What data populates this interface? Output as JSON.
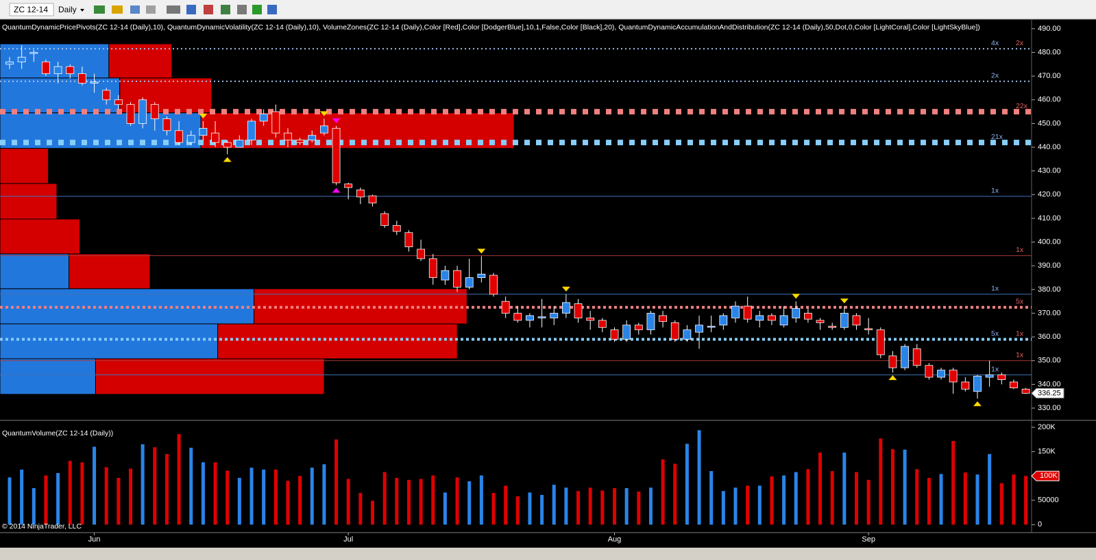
{
  "toolbar": {
    "instrument": "ZC 12-14",
    "period": "Daily"
  },
  "chart_data": [
    {
      "type": "candlestick",
      "indicator_label": "QuantumDynamicPricePivots(ZC 12-14 (Daily),10), QuantumDynamicVolatility(ZC 12-14 (Daily),10), VolumeZones(ZC 12-14 (Daily),Color [Red],Color [DodgerBlue],10,1,False,Color [Black],20), QuantumDynamicAccumulationAndDistribution(ZC 12-14 (Daily),50,Dot,0,Color [LightCoral],Color [LightSkyBlue])",
      "up_color": "#2a84e8",
      "down_color": "#e00000",
      "open": [
        475,
        476,
        479.5,
        476,
        471,
        474,
        471,
        467,
        464,
        460,
        458,
        450,
        458,
        452,
        447,
        442,
        445,
        446,
        442,
        440,
        443,
        451,
        455,
        446,
        443,
        443,
        446,
        448,
        424.5,
        422,
        419.5,
        412,
        407,
        404,
        397,
        393,
        384,
        388,
        381,
        385,
        386,
        375,
        370,
        367,
        368,
        368,
        370,
        374,
        368,
        367,
        363,
        359,
        365,
        363,
        369,
        366,
        359,
        362,
        364.5,
        365,
        368,
        373,
        367,
        369,
        365,
        368,
        370,
        367,
        364.5,
        364,
        369,
        363.5,
        363,
        352,
        347,
        355,
        348,
        343,
        346,
        341,
        337,
        343,
        344,
        341,
        338
      ],
      "high": [
        478,
        483,
        481,
        477,
        476,
        475,
        474,
        471,
        465,
        462,
        459,
        461,
        459,
        453,
        451,
        447,
        451,
        451,
        443,
        445,
        452,
        456,
        458,
        448,
        444,
        447,
        452,
        449,
        425,
        423,
        420,
        413,
        409,
        405,
        401,
        395,
        390,
        390,
        393,
        394,
        387,
        377,
        373,
        370,
        376,
        373,
        378,
        376,
        371,
        368,
        364,
        367,
        366,
        371,
        371,
        367,
        365,
        369,
        369,
        370,
        375,
        377,
        371,
        370,
        373,
        375,
        372,
        368,
        366,
        373,
        370,
        368,
        364,
        354,
        357,
        357,
        349,
        347,
        347,
        343,
        344,
        350,
        345,
        342,
        338.5
      ],
      "low": [
        473,
        473,
        476,
        470,
        467,
        469,
        466,
        463,
        458,
        456,
        449,
        448,
        447,
        445,
        441,
        441,
        443,
        440,
        437,
        440,
        441,
        449,
        444,
        440,
        441,
        442,
        445,
        424,
        418,
        416,
        415,
        406,
        403,
        396,
        392,
        382,
        382,
        379,
        380,
        383,
        377,
        368,
        366,
        364,
        364,
        365,
        368,
        366,
        363,
        362,
        358,
        358,
        361,
        361,
        364,
        358,
        358,
        355,
        362,
        363,
        366,
        366,
        364,
        365,
        364,
        366,
        366,
        363,
        363,
        363,
        363,
        361,
        351,
        345,
        346,
        347,
        342,
        342,
        336,
        337,
        334,
        339,
        340,
        338,
        336
      ],
      "close": [
        476,
        478,
        480,
        471,
        474,
        471,
        467,
        467.5,
        460,
        458,
        450,
        460,
        452,
        447,
        442,
        445,
        448,
        442,
        440,
        443,
        451,
        454,
        446,
        443,
        442,
        445,
        449,
        425,
        423,
        419,
        416.5,
        407,
        404.5,
        398,
        393,
        385,
        388,
        381,
        385,
        386.5,
        378,
        370,
        367,
        369,
        368.5,
        370,
        374.5,
        368,
        367,
        364,
        359,
        365,
        363,
        370,
        366.5,
        359,
        363,
        365,
        364.5,
        369,
        373,
        367.5,
        369,
        367,
        369,
        372,
        367.5,
        366,
        364,
        370,
        365,
        363,
        352.5,
        347,
        356,
        348,
        343,
        346,
        341,
        338,
        343.5,
        344,
        342,
        338.5,
        336.25
      ],
      "ylim": [
        325.4,
        494
      ],
      "yticks": [
        {
          "value": 490,
          "label": "490.00"
        },
        {
          "value": 480,
          "label": "480.00"
        },
        {
          "value": 470,
          "label": "470.00"
        },
        {
          "value": 460,
          "label": "460.00"
        },
        {
          "value": 450,
          "label": "450.00"
        },
        {
          "value": 440,
          "label": "440.00"
        },
        {
          "value": 430,
          "label": "430.00"
        },
        {
          "value": 420,
          "label": "420.00"
        },
        {
          "value": 410,
          "label": "410.00"
        },
        {
          "value": 400,
          "label": "400.00"
        },
        {
          "value": 390,
          "label": "390.00"
        },
        {
          "value": 380,
          "label": "380.00"
        },
        {
          "value": 370,
          "label": "370.00"
        },
        {
          "value": 360,
          "label": "360.00"
        },
        {
          "value": 350,
          "label": "350.00"
        },
        {
          "value": 340,
          "label": "340.00"
        },
        {
          "value": 330,
          "label": "330.00"
        }
      ],
      "last_price": 336.25,
      "volume_zones": [
        {
          "low": 469.2,
          "high": 483.6,
          "up": 9.0,
          "down": 5.2,
          "up_color": "#2277dd",
          "down_color": "#d40000"
        },
        {
          "low": 454.5,
          "high": 469.2,
          "up": 9.9,
          "down": 7.6,
          "up_color": "#2277dd",
          "down_color": "#d40000"
        },
        {
          "low": 439.5,
          "high": 454.5,
          "up": 16.6,
          "down": 25.9,
          "up_color": "#2277dd",
          "down_color": "#d40000"
        },
        {
          "low": 424.7,
          "high": 439.5,
          "up": 0,
          "down": 4.0,
          "up_color": "#2277dd",
          "down_color": "#d40000"
        },
        {
          "low": 409.7,
          "high": 424.7,
          "up": 0,
          "down": 4.7,
          "up_color": "#2277dd",
          "down_color": "#d40000"
        },
        {
          "low": 395,
          "high": 409.7,
          "up": 0,
          "down": 6.6,
          "up_color": "#2277dd",
          "down_color": "#d40000"
        },
        {
          "low": 380.3,
          "high": 395,
          "up": 5.7,
          "down": 6.7,
          "up_color": "#2277dd",
          "down_color": "#d40000"
        },
        {
          "low": 365.5,
          "high": 380.3,
          "up": 21.0,
          "down": 17.6,
          "up_color": "#2277dd",
          "down_color": "#d40000"
        },
        {
          "low": 350.8,
          "high": 365.5,
          "up": 18.0,
          "down": 19.8,
          "up_color": "#2277dd",
          "down_color": "#d40000"
        },
        {
          "low": 335.8,
          "high": 350.8,
          "up": 7.9,
          "down": 18.9,
          "up_color": "#2277dd",
          "down_color": "#d40000"
        }
      ],
      "levels": [
        {
          "value": 481.5,
          "color": "#a8c4ec",
          "style": "dots",
          "blue_tag": "4x",
          "red_tag": "2x"
        },
        {
          "value": 467.8,
          "color": "#a8c4ec",
          "style": "dots",
          "blue_tag": "2x"
        },
        {
          "value": 455,
          "color": "#f08080",
          "style": "blocks",
          "red_tag": "22x"
        },
        {
          "value": 442,
          "color": "#87cefa",
          "style": "blocks",
          "blue_tag": "21x"
        },
        {
          "value": 419.3,
          "color": "#3f74b8",
          "style": "solid",
          "blue_tag": "1x"
        },
        {
          "value": 394.3,
          "color": "#a83838",
          "style": "solid",
          "red_tag": "1x"
        },
        {
          "value": 378,
          "color": "#3f74b8",
          "style": "solid",
          "blue_tag": "1x"
        },
        {
          "value": 372.5,
          "color": "#f08080",
          "style": "dashes",
          "red_tag": "5x"
        },
        {
          "value": 359,
          "color": "#87cefa",
          "style": "dashes",
          "blue_tag": "5x",
          "red_tag": "1x"
        },
        {
          "value": 350,
          "color": "#a83838",
          "style": "solid",
          "red_tag": "1x"
        },
        {
          "value": 344,
          "color": "#3f74b8",
          "style": "solid",
          "blue_tag": "1x"
        }
      ],
      "signals": [
        {
          "index": 16,
          "dir": "down",
          "color": "#ffd700"
        },
        {
          "index": 18,
          "dir": "up",
          "color": "#ffd700"
        },
        {
          "index": 26,
          "dir": "down",
          "color": "#ffd700"
        },
        {
          "index": 27,
          "dir": "down",
          "color": "#ff00ff"
        },
        {
          "index": 27,
          "dir": "up",
          "color": "#ff00ff"
        },
        {
          "index": 39,
          "dir": "down",
          "color": "#ffd700"
        },
        {
          "index": 46,
          "dir": "down",
          "color": "#ffd700"
        },
        {
          "index": 65,
          "dir": "down",
          "color": "#ffd700"
        },
        {
          "index": 69,
          "dir": "down",
          "color": "#ffd700"
        },
        {
          "index": 73,
          "dir": "up",
          "color": "#ffd700"
        },
        {
          "index": 80,
          "dir": "up",
          "color": "#ffd700"
        }
      ]
    },
    {
      "type": "bar",
      "title": "QuantumVolume(ZC 12-14 (Daily))",
      "categories": [
        null,
        null,
        null,
        null,
        null,
        null,
        null,
        "Jun",
        null,
        null,
        null,
        null,
        null,
        null,
        null,
        null,
        null,
        null,
        null,
        null,
        null,
        null,
        null,
        null,
        null,
        null,
        null,
        null,
        "Jul",
        null,
        null,
        null,
        null,
        null,
        null,
        null,
        null,
        null,
        null,
        null,
        null,
        null,
        null,
        null,
        null,
        null,
        null,
        null,
        null,
        null,
        "Aug",
        null,
        null,
        null,
        null,
        null,
        null,
        null,
        null,
        null,
        null,
        null,
        null,
        null,
        null,
        null,
        null,
        null,
        null,
        null,
        null,
        "Sep",
        null,
        null,
        null,
        null,
        null,
        null,
        null,
        null,
        null,
        null,
        null,
        null,
        null
      ],
      "values": [
        97000,
        113000,
        75000,
        101000,
        106000,
        131000,
        128000,
        160000,
        118000,
        96000,
        115000,
        165000,
        159000,
        145000,
        186000,
        158000,
        128000,
        128000,
        111000,
        96000,
        117000,
        113000,
        113000,
        90000,
        100000,
        117000,
        124000,
        175000,
        94000,
        65000,
        49000,
        108000,
        96000,
        92000,
        94000,
        101000,
        66000,
        97000,
        89000,
        101000,
        65000,
        80000,
        58000,
        66000,
        61000,
        82000,
        76000,
        69000,
        76000,
        70000,
        75000,
        75000,
        68000,
        76000,
        134000,
        125000,
        166000,
        194000,
        110000,
        69000,
        76000,
        80000,
        80000,
        99000,
        101000,
        108000,
        114000,
        148000,
        110000,
        148000,
        108000,
        92000,
        177000,
        155000,
        154000,
        114000,
        96000,
        104000,
        172000,
        107000,
        103000,
        145000,
        85000,
        103000,
        100000
      ],
      "ylim": [
        -15000,
        210000
      ],
      "yticks": [
        {
          "value": 200000,
          "label": "200K"
        },
        {
          "value": 150000,
          "label": "150K"
        },
        50000,
        0
      ],
      "last_value": {
        "value": 100000,
        "label": "100K"
      },
      "copyright": "© 2014 NinjaTrader, LLC"
    }
  ]
}
